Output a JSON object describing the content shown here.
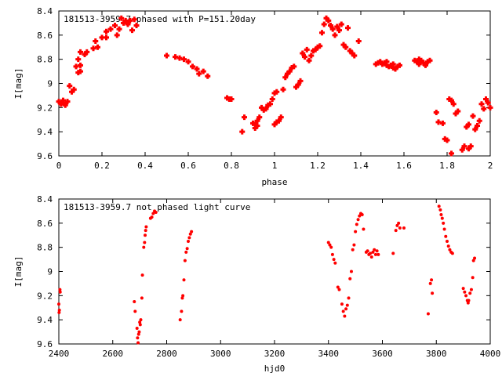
{
  "chart_data": [
    {
      "type": "scatter",
      "title": "181513-3959.7 phased with P=151.20day",
      "xlabel": "phase",
      "ylabel": "I[mag]",
      "xlim": [
        0,
        2
      ],
      "ylim": [
        9.6,
        8.4
      ],
      "y_inverted": true,
      "grid": false,
      "marker_color": "#ff0000",
      "xticks": [
        "0",
        "0.2",
        "0.4",
        "0.6",
        "0.8",
        "1",
        "1.2",
        "1.4",
        "1.6",
        "1.8",
        "2"
      ],
      "yticks": [
        "8.4",
        "8.6",
        "8.8",
        "9",
        "9.2",
        "9.4",
        "9.6"
      ],
      "points": [
        [
          0.0,
          9.15
        ],
        [
          0.01,
          9.17
        ],
        [
          0.02,
          9.16
        ],
        [
          0.03,
          9.18
        ],
        [
          0.04,
          9.15
        ],
        [
          0.02,
          9.14
        ],
        [
          0.05,
          9.02
        ],
        [
          0.06,
          9.07
        ],
        [
          0.07,
          9.05
        ],
        [
          0.09,
          8.91
        ],
        [
          0.1,
          8.9
        ],
        [
          0.1,
          8.85
        ],
        [
          0.08,
          8.86
        ],
        [
          0.09,
          8.8
        ],
        [
          0.1,
          8.74
        ],
        [
          0.12,
          8.76
        ],
        [
          0.13,
          8.74
        ],
        [
          0.16,
          8.71
        ],
        [
          0.17,
          8.65
        ],
        [
          0.18,
          8.7
        ],
        [
          0.2,
          8.62
        ],
        [
          0.22,
          8.62
        ],
        [
          0.22,
          8.57
        ],
        [
          0.24,
          8.55
        ],
        [
          0.26,
          8.52
        ],
        [
          0.27,
          8.6
        ],
        [
          0.28,
          8.55
        ],
        [
          0.29,
          8.46
        ],
        [
          0.3,
          8.5
        ],
        [
          0.31,
          8.48
        ],
        [
          0.32,
          8.51
        ],
        [
          0.33,
          8.48
        ],
        [
          0.35,
          8.47
        ],
        [
          0.36,
          8.52
        ],
        [
          0.34,
          8.56
        ],
        [
          0.5,
          8.77
        ],
        [
          0.54,
          8.78
        ],
        [
          0.56,
          8.79
        ],
        [
          0.58,
          8.8
        ],
        [
          0.6,
          8.82
        ],
        [
          0.62,
          8.86
        ],
        [
          0.64,
          8.88
        ],
        [
          0.65,
          8.92
        ],
        [
          0.67,
          8.9
        ],
        [
          0.69,
          8.94
        ],
        [
          0.78,
          9.12
        ],
        [
          0.79,
          9.13
        ],
        [
          0.8,
          9.13
        ],
        [
          0.85,
          9.4
        ],
        [
          0.86,
          9.28
        ],
        [
          0.9,
          9.33
        ],
        [
          0.91,
          9.34
        ],
        [
          0.91,
          9.37
        ],
        [
          0.92,
          9.35
        ],
        [
          0.92,
          9.31
        ],
        [
          0.93,
          9.28
        ],
        [
          0.94,
          9.2
        ],
        [
          0.95,
          9.22
        ],
        [
          0.96,
          9.21
        ],
        [
          0.97,
          9.18
        ],
        [
          0.98,
          9.17
        ],
        [
          0.99,
          9.13
        ],
        [
          1.0,
          9.08
        ],
        [
          1.0,
          9.34
        ],
        [
          1.01,
          9.32
        ],
        [
          1.02,
          9.31
        ],
        [
          1.03,
          9.28
        ],
        [
          1.01,
          9.07
        ],
        [
          1.04,
          9.05
        ],
        [
          1.05,
          8.95
        ],
        [
          1.06,
          8.92
        ],
        [
          1.07,
          8.9
        ],
        [
          1.08,
          8.87
        ],
        [
          1.09,
          8.86
        ],
        [
          1.1,
          9.03
        ],
        [
          1.11,
          9.01
        ],
        [
          1.12,
          8.98
        ],
        [
          1.13,
          8.75
        ],
        [
          1.14,
          8.78
        ],
        [
          1.15,
          8.72
        ],
        [
          1.16,
          8.81
        ],
        [
          1.17,
          8.77
        ],
        [
          1.18,
          8.73
        ],
        [
          1.19,
          8.72
        ],
        [
          1.2,
          8.7
        ],
        [
          1.21,
          8.69
        ],
        [
          1.22,
          8.58
        ],
        [
          1.23,
          8.51
        ],
        [
          1.24,
          8.46
        ],
        [
          1.25,
          8.48
        ],
        [
          1.26,
          8.52
        ],
        [
          1.27,
          8.55
        ],
        [
          1.28,
          8.6
        ],
        [
          1.29,
          8.53
        ],
        [
          1.3,
          8.56
        ],
        [
          1.31,
          8.51
        ],
        [
          1.32,
          8.68
        ],
        [
          1.33,
          8.7
        ],
        [
          1.34,
          8.54
        ],
        [
          1.35,
          8.73
        ],
        [
          1.36,
          8.75
        ],
        [
          1.37,
          8.77
        ],
        [
          1.39,
          8.65
        ],
        [
          1.47,
          8.84
        ],
        [
          1.48,
          8.83
        ],
        [
          1.49,
          8.82
        ],
        [
          1.5,
          8.84
        ],
        [
          1.51,
          8.83
        ],
        [
          1.52,
          8.85
        ],
        [
          1.53,
          8.86
        ],
        [
          1.54,
          8.85
        ],
        [
          1.55,
          8.87
        ],
        [
          1.56,
          8.88
        ],
        [
          1.57,
          8.86
        ],
        [
          1.58,
          8.85
        ],
        [
          1.55,
          8.84
        ],
        [
          1.52,
          8.82
        ],
        [
          1.66,
          8.82
        ],
        [
          1.67,
          8.84
        ],
        [
          1.68,
          8.81
        ],
        [
          1.69,
          8.83
        ],
        [
          1.7,
          8.85
        ],
        [
          1.71,
          8.82
        ],
        [
          1.72,
          8.81
        ],
        [
          1.67,
          8.8
        ],
        [
          1.65,
          8.81
        ],
        [
          1.75,
          9.24
        ],
        [
          1.76,
          9.32
        ],
        [
          1.8,
          9.47
        ],
        [
          1.81,
          9.13
        ],
        [
          1.82,
          9.14
        ],
        [
          1.83,
          9.17
        ],
        [
          1.84,
          9.25
        ],
        [
          1.85,
          9.23
        ],
        [
          1.87,
          9.55
        ],
        [
          1.88,
          9.52
        ],
        [
          1.89,
          9.36
        ],
        [
          1.9,
          9.54
        ],
        [
          1.91,
          9.52
        ],
        [
          1.9,
          9.34
        ],
        [
          1.92,
          9.27
        ],
        [
          1.93,
          9.38
        ],
        [
          1.94,
          9.35
        ],
        [
          1.95,
          9.31
        ],
        [
          1.96,
          9.17
        ],
        [
          1.97,
          9.21
        ],
        [
          1.98,
          9.13
        ],
        [
          1.99,
          9.16
        ],
        [
          2.0,
          9.2
        ],
        [
          1.82,
          9.58
        ],
        [
          1.79,
          9.46
        ],
        [
          1.78,
          9.33
        ]
      ]
    },
    {
      "type": "scatter",
      "title": "181513-3959.7 not phased light curve",
      "xlabel": "hjd0",
      "ylabel": "I[mag]",
      "xlim": [
        2400,
        4000
      ],
      "ylim": [
        9.6,
        8.4
      ],
      "y_inverted": true,
      "grid": false,
      "marker_color": "#ff0000",
      "xticks": [
        "2400",
        "2600",
        "2800",
        "3000",
        "3200",
        "3400",
        "3600",
        "3800",
        "4000"
      ],
      "yticks": [
        "8.4",
        "8.6",
        "8.8",
        "9",
        "9.2",
        "9.4",
        "9.6"
      ],
      "points": [
        [
          2400,
          9.27
        ],
        [
          2401,
          9.34
        ],
        [
          2402,
          9.32
        ],
        [
          2404,
          9.15
        ],
        [
          2405,
          9.17
        ],
        [
          2680,
          9.25
        ],
        [
          2683,
          9.33
        ],
        [
          2690,
          9.47
        ],
        [
          2692,
          9.55
        ],
        [
          2694,
          9.59
        ],
        [
          2696,
          9.52
        ],
        [
          2698,
          9.5
        ],
        [
          2700,
          9.42
        ],
        [
          2702,
          9.44
        ],
        [
          2704,
          9.4
        ],
        [
          2708,
          9.22
        ],
        [
          2710,
          9.03
        ],
        [
          2715,
          8.8
        ],
        [
          2718,
          8.76
        ],
        [
          2720,
          8.7
        ],
        [
          2722,
          8.66
        ],
        [
          2724,
          8.63
        ],
        [
          2740,
          8.56
        ],
        [
          2745,
          8.55
        ],
        [
          2750,
          8.52
        ],
        [
          2755,
          8.5
        ],
        [
          2760,
          8.51
        ],
        [
          2850,
          9.4
        ],
        [
          2855,
          9.33
        ],
        [
          2858,
          9.22
        ],
        [
          2860,
          9.2
        ],
        [
          2864,
          9.07
        ],
        [
          2868,
          8.91
        ],
        [
          2872,
          8.84
        ],
        [
          2876,
          8.81
        ],
        [
          2880,
          8.75
        ],
        [
          2884,
          8.72
        ],
        [
          2888,
          8.69
        ],
        [
          2892,
          8.67
        ],
        [
          3400,
          8.76
        ],
        [
          3405,
          8.78
        ],
        [
          3410,
          8.8
        ],
        [
          3415,
          8.86
        ],
        [
          3420,
          8.9
        ],
        [
          3425,
          8.93
        ],
        [
          3435,
          9.13
        ],
        [
          3440,
          9.15
        ],
        [
          3450,
          9.27
        ],
        [
          3455,
          9.33
        ],
        [
          3460,
          9.37
        ],
        [
          3465,
          9.31
        ],
        [
          3470,
          9.28
        ],
        [
          3475,
          9.22
        ],
        [
          3480,
          9.06
        ],
        [
          3485,
          9.0
        ],
        [
          3490,
          8.82
        ],
        [
          3495,
          8.78
        ],
        [
          3500,
          8.67
        ],
        [
          3505,
          8.61
        ],
        [
          3510,
          8.57
        ],
        [
          3515,
          8.54
        ],
        [
          3520,
          8.52
        ],
        [
          3525,
          8.53
        ],
        [
          3530,
          8.65
        ],
        [
          3540,
          8.84
        ],
        [
          3545,
          8.83
        ],
        [
          3550,
          8.86
        ],
        [
          3555,
          8.85
        ],
        [
          3560,
          8.88
        ],
        [
          3565,
          8.84
        ],
        [
          3570,
          8.82
        ],
        [
          3575,
          8.86
        ],
        [
          3580,
          8.83
        ],
        [
          3585,
          8.86
        ],
        [
          3640,
          8.85
        ],
        [
          3650,
          8.66
        ],
        [
          3655,
          8.62
        ],
        [
          3660,
          8.6
        ],
        [
          3665,
          8.64
        ],
        [
          3680,
          8.64
        ],
        [
          3770,
          9.35
        ],
        [
          3778,
          9.1
        ],
        [
          3782,
          9.07
        ],
        [
          3785,
          9.18
        ],
        [
          3810,
          8.46
        ],
        [
          3815,
          8.49
        ],
        [
          3818,
          8.53
        ],
        [
          3822,
          8.56
        ],
        [
          3826,
          8.6
        ],
        [
          3830,
          8.65
        ],
        [
          3835,
          8.71
        ],
        [
          3840,
          8.75
        ],
        [
          3845,
          8.79
        ],
        [
          3850,
          8.82
        ],
        [
          3855,
          8.84
        ],
        [
          3860,
          8.85
        ],
        [
          3900,
          9.14
        ],
        [
          3905,
          9.17
        ],
        [
          3910,
          9.2
        ],
        [
          3915,
          9.24
        ],
        [
          3918,
          9.26
        ],
        [
          3920,
          9.24
        ],
        [
          3925,
          9.18
        ],
        [
          3930,
          9.15
        ],
        [
          3935,
          9.05
        ],
        [
          3938,
          8.91
        ],
        [
          3942,
          8.89
        ]
      ]
    }
  ]
}
